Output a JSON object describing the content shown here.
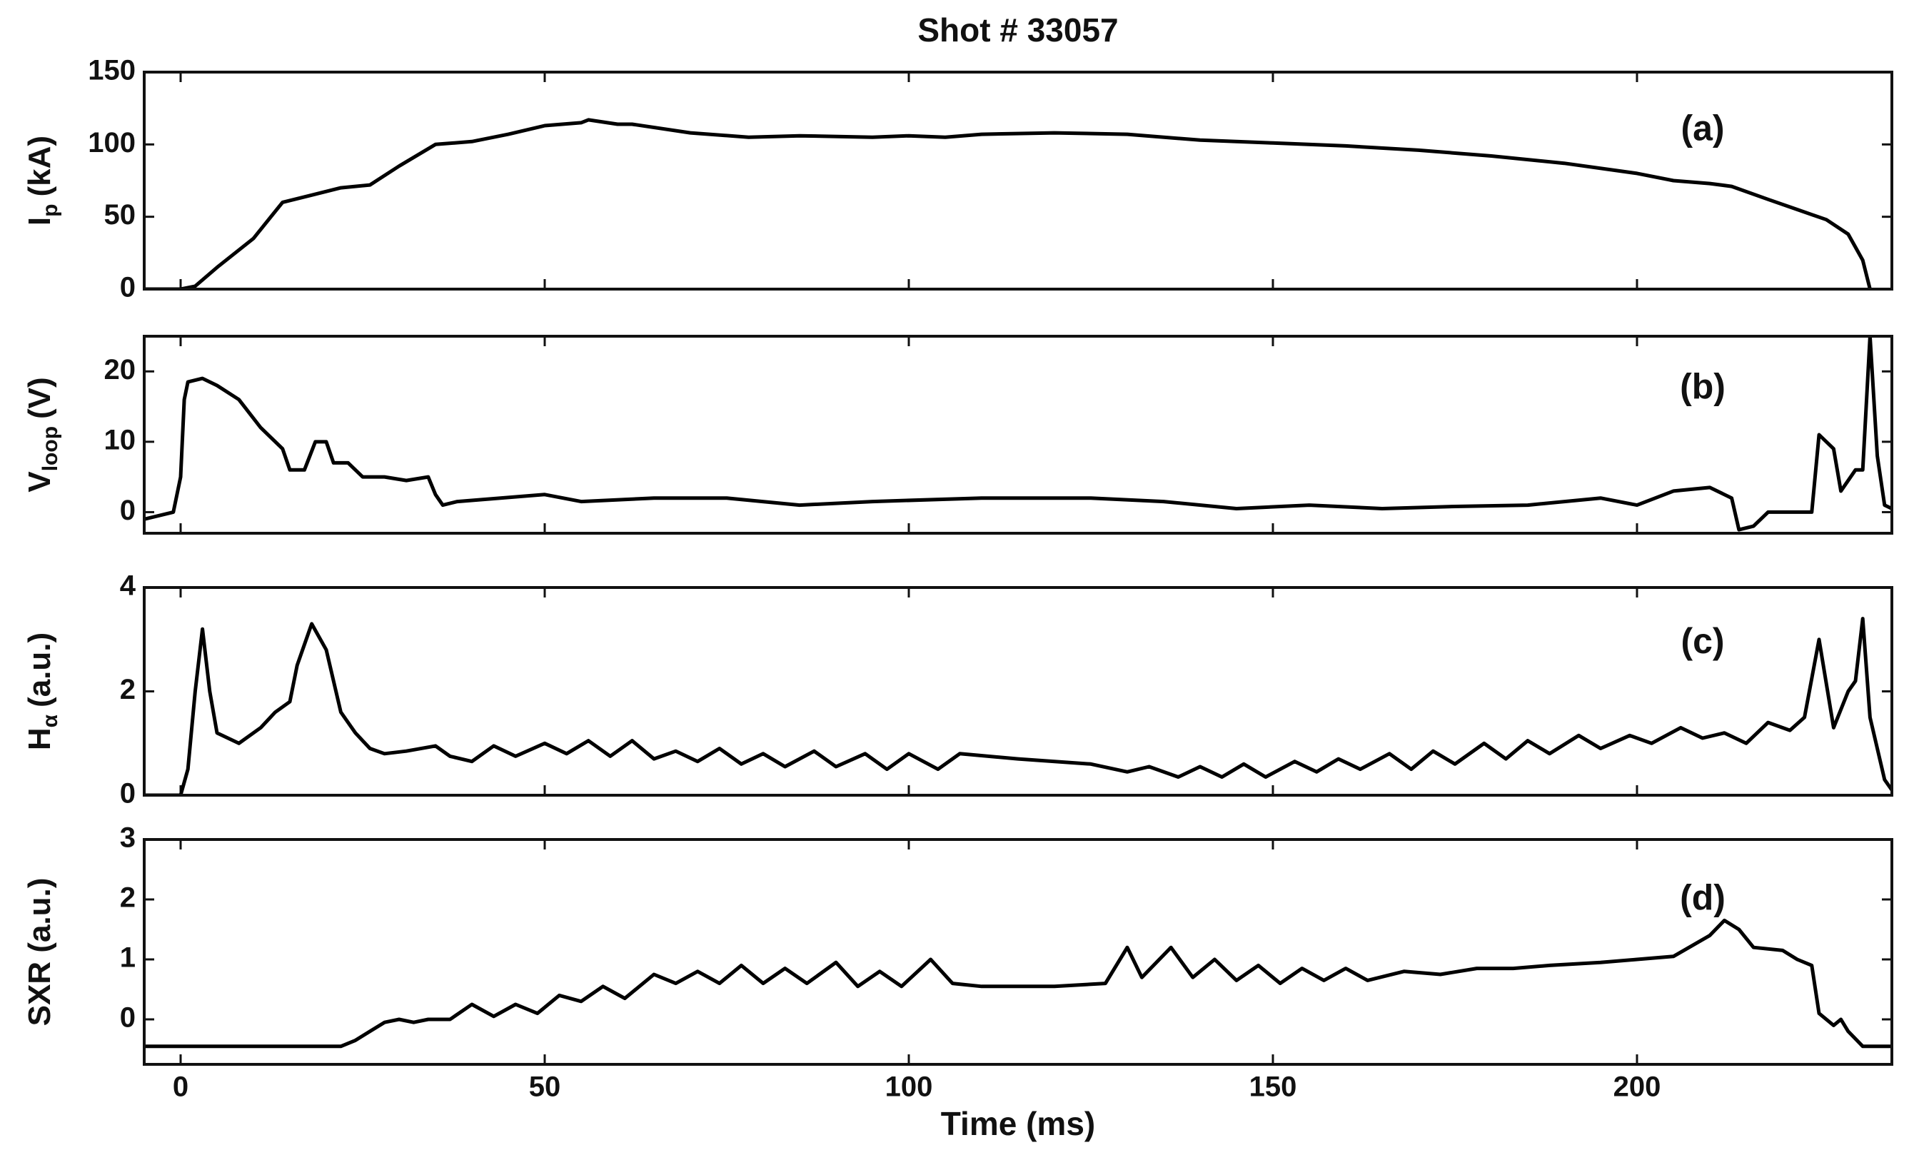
{
  "chart_data": [
    {
      "type": "line",
      "title": "Shot # 33057",
      "ylabel": "I",
      "ylabel_sub": "p",
      "ylabel_unit": "(kA)",
      "annotation": "(a)",
      "color": "#000000",
      "ylim": [
        0,
        150
      ],
      "yticks": [
        0,
        50,
        100,
        150
      ],
      "x": [
        -5,
        0,
        2,
        5,
        10,
        14,
        18,
        22,
        26,
        30,
        35,
        40,
        45,
        50,
        55,
        56,
        60,
        62,
        70,
        78,
        85,
        95,
        100,
        105,
        110,
        120,
        130,
        140,
        150,
        160,
        170,
        180,
        190,
        200,
        205,
        210,
        213,
        218,
        222,
        226,
        229,
        231,
        232
      ],
      "values": [
        0,
        0,
        2,
        15,
        35,
        60,
        65,
        70,
        72,
        85,
        100,
        102,
        107,
        113,
        115,
        117,
        114,
        114,
        108,
        105,
        106,
        105,
        106,
        105,
        107,
        108,
        107,
        103,
        101,
        99,
        96,
        92,
        87,
        80,
        75,
        73,
        71,
        62,
        55,
        48,
        38,
        20,
        0
      ]
    },
    {
      "type": "line",
      "ylabel": "V",
      "ylabel_sub": "loop",
      "ylabel_unit": "(V)",
      "annotation": "(b)",
      "color": "#000000",
      "ylim": [
        -3,
        25
      ],
      "yticks": [
        0,
        10,
        20
      ],
      "x": [
        -5,
        -1,
        0,
        0.5,
        1,
        3,
        5,
        8,
        11,
        14,
        15,
        17,
        18.5,
        20,
        21,
        23,
        25,
        28,
        31,
        34,
        35,
        36,
        38,
        50,
        55,
        65,
        75,
        85,
        95,
        110,
        125,
        135,
        145,
        155,
        165,
        175,
        185,
        195,
        200,
        205,
        210,
        213,
        214,
        216,
        218,
        222,
        224,
        225,
        227,
        228,
        230,
        231,
        232,
        233,
        234,
        235
      ],
      "values": [
        -1,
        0,
        5,
        16,
        18.5,
        19,
        18,
        16,
        12,
        9,
        6,
        6,
        10,
        10,
        7,
        7,
        5,
        5,
        4.5,
        5,
        2.5,
        1,
        1.5,
        2.5,
        1.5,
        2,
        2,
        1,
        1.5,
        2,
        2,
        1.5,
        0.5,
        1,
        0.5,
        0.8,
        1,
        2,
        1,
        3,
        3.5,
        2,
        -2.5,
        -2,
        0,
        0,
        0,
        11,
        9,
        3,
        6,
        6,
        25,
        8,
        1,
        0.5
      ]
    },
    {
      "type": "line",
      "ylabel": "H",
      "ylabel_sub": "α",
      "ylabel_unit": "(a.u.)",
      "annotation": "(c)",
      "color": "#000000",
      "ylim": [
        0,
        4
      ],
      "yticks": [
        0,
        2,
        4
      ],
      "x": [
        -5,
        0,
        1,
        2,
        3,
        4,
        5,
        8,
        11,
        13,
        15,
        16,
        18,
        20,
        22,
        24,
        26,
        28,
        31,
        35,
        37,
        40,
        43,
        46,
        50,
        53,
        56,
        59,
        62,
        65,
        68,
        71,
        74,
        77,
        80,
        83,
        87,
        90,
        94,
        97,
        100,
        104,
        107,
        115,
        125,
        130,
        133,
        137,
        140,
        143,
        146,
        149,
        153,
        156,
        159,
        162,
        166,
        169,
        172,
        175,
        179,
        182,
        185,
        188,
        192,
        195,
        199,
        202,
        206,
        209,
        212,
        215,
        218,
        221,
        223,
        225,
        227,
        229,
        230,
        231,
        232,
        234,
        235
      ],
      "values": [
        0,
        0,
        0.5,
        2,
        3.2,
        2,
        1.2,
        1,
        1.3,
        1.6,
        1.8,
        2.5,
        3.3,
        2.8,
        1.6,
        1.2,
        0.9,
        0.8,
        0.85,
        0.95,
        0.75,
        0.65,
        0.95,
        0.75,
        1.0,
        0.8,
        1.05,
        0.75,
        1.05,
        0.7,
        0.85,
        0.65,
        0.9,
        0.6,
        0.8,
        0.55,
        0.85,
        0.55,
        0.8,
        0.5,
        0.8,
        0.5,
        0.8,
        0.7,
        0.6,
        0.45,
        0.55,
        0.35,
        0.55,
        0.35,
        0.6,
        0.35,
        0.65,
        0.45,
        0.7,
        0.5,
        0.8,
        0.5,
        0.85,
        0.6,
        1.0,
        0.7,
        1.05,
        0.8,
        1.15,
        0.9,
        1.15,
        1.0,
        1.3,
        1.1,
        1.2,
        1.0,
        1.4,
        1.25,
        1.5,
        3.0,
        1.3,
        2.0,
        2.2,
        3.4,
        1.5,
        0.3,
        0.1
      ]
    },
    {
      "type": "line",
      "ylabel": "SXR (a.u.)",
      "annotation": "(d)",
      "xlabel": "Time (ms)",
      "color": "#000000",
      "xlim": [
        -5,
        235
      ],
      "xticks": [
        0,
        50,
        100,
        150,
        200
      ],
      "ylim": [
        -0.75,
        3
      ],
      "yticks": [
        0,
        1,
        2,
        3
      ],
      "x": [
        -5,
        22,
        24,
        26,
        28,
        30,
        32,
        34,
        37,
        40,
        43,
        46,
        49,
        52,
        55,
        58,
        61,
        65,
        68,
        71,
        74,
        77,
        80,
        83,
        86,
        90,
        93,
        96,
        99,
        103,
        106,
        110,
        120,
        127,
        130,
        132,
        136,
        139,
        142,
        145,
        148,
        151,
        154,
        157,
        160,
        163,
        168,
        173,
        178,
        183,
        188,
        195,
        200,
        205,
        210,
        212,
        214,
        216,
        220,
        222,
        224,
        225,
        227,
        228,
        229,
        231,
        235
      ],
      "values": [
        -0.45,
        -0.45,
        -0.35,
        -0.2,
        -0.05,
        0,
        -0.05,
        0,
        0,
        0.25,
        0.05,
        0.25,
        0.1,
        0.4,
        0.3,
        0.55,
        0.35,
        0.75,
        0.6,
        0.8,
        0.6,
        0.9,
        0.6,
        0.85,
        0.6,
        0.95,
        0.55,
        0.8,
        0.55,
        1.0,
        0.6,
        0.55,
        0.55,
        0.6,
        1.2,
        0.7,
        1.2,
        0.7,
        1.0,
        0.65,
        0.9,
        0.6,
        0.85,
        0.65,
        0.85,
        0.65,
        0.8,
        0.75,
        0.85,
        0.85,
        0.9,
        0.95,
        1.0,
        1.05,
        1.4,
        1.65,
        1.5,
        1.2,
        1.15,
        1.0,
        0.9,
        0.1,
        -0.1,
        0.0,
        -0.2,
        -0.45,
        -0.45
      ]
    }
  ]
}
